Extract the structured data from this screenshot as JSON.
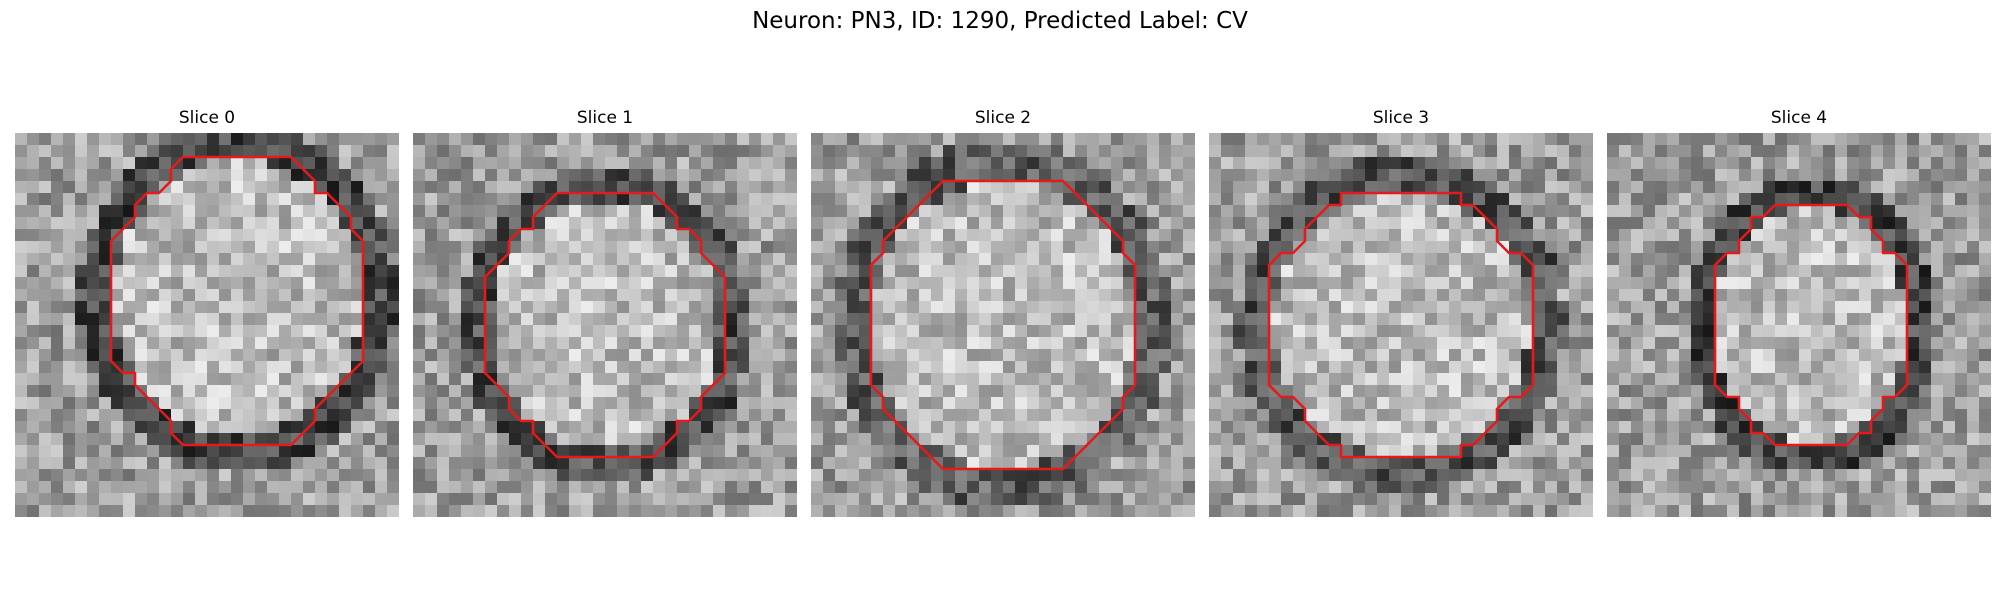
{
  "figure": {
    "title": "Neuron: PN3, ID: 1290, Predicted Label: CV"
  },
  "panels": [
    {
      "title": "Slice 0",
      "seed": 11,
      "center": [
        0.58,
        0.43
      ],
      "radius": [
        0.36,
        0.4
      ],
      "darkness": 0.14
    },
    {
      "title": "Slice 1",
      "seed": 23,
      "center": [
        0.5,
        0.5
      ],
      "radius": [
        0.33,
        0.36
      ],
      "darkness": 0.12
    },
    {
      "title": "Slice 2",
      "seed": 37,
      "center": [
        0.5,
        0.5
      ],
      "radius": [
        0.38,
        0.42
      ],
      "darkness": 0.05
    },
    {
      "title": "Slice 3",
      "seed": 41,
      "center": [
        0.5,
        0.5
      ],
      "radius": [
        0.37,
        0.38
      ],
      "darkness": 0.1
    },
    {
      "title": "Slice 4",
      "seed": 53,
      "center": [
        0.53,
        0.5
      ],
      "radius": [
        0.28,
        0.34
      ],
      "darkness": 0.15
    }
  ],
  "colors": {
    "contour": "#e41a1c",
    "background": "#ffffff"
  }
}
